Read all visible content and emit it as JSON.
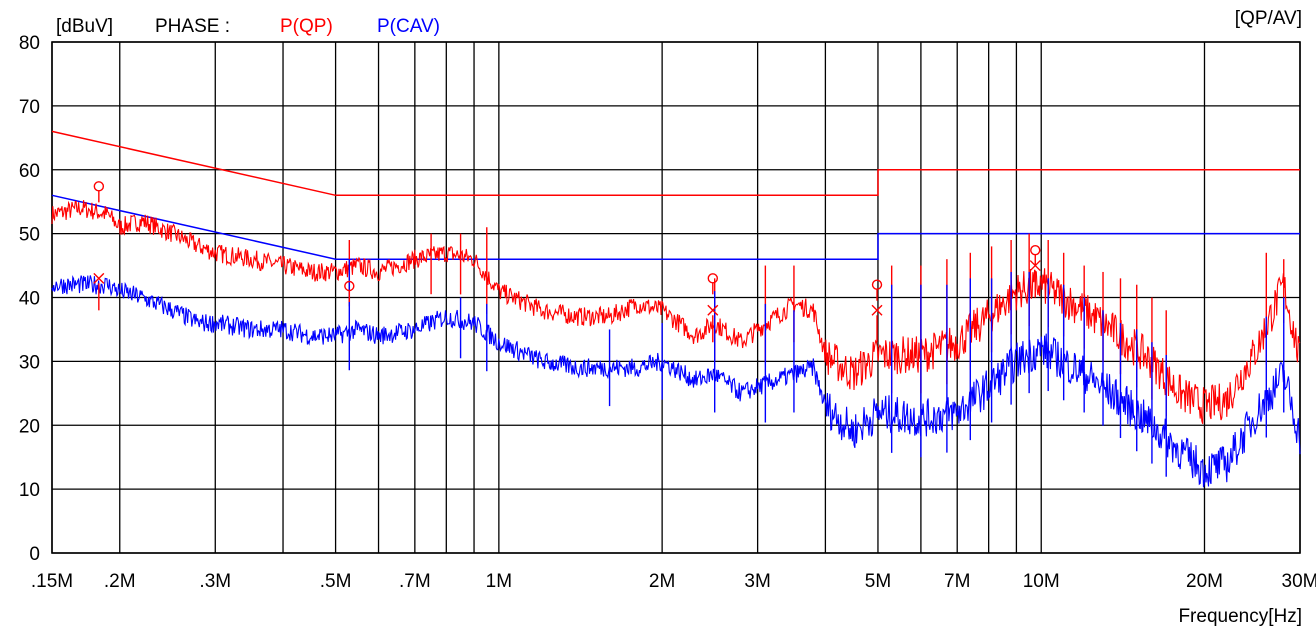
{
  "chart_data": {
    "type": "line",
    "header": {
      "unit": "[dBuV]",
      "phase_label": "PHASE :",
      "series_qp_label": "P(QP)",
      "series_cav_label": "P(CAV)",
      "mode": "[QP/AV]"
    },
    "xlabel": "Frequency[Hz]",
    "ylabel": "[dBuV]",
    "x_scale": "log",
    "xlim": [
      0.15,
      30
    ],
    "ylim": [
      0,
      80
    ],
    "yticks": [
      0,
      10,
      20,
      30,
      40,
      50,
      60,
      70,
      80
    ],
    "xticks": [
      {
        "value": 0.15,
        "label": ".15M"
      },
      {
        "value": 0.2,
        "label": ".2M"
      },
      {
        "value": 0.3,
        "label": ".3M"
      },
      {
        "value": 0.5,
        "label": ".5M"
      },
      {
        "value": 0.7,
        "label": ".7M"
      },
      {
        "value": 1,
        "label": "1M"
      },
      {
        "value": 2,
        "label": "2M"
      },
      {
        "value": 3,
        "label": "3M"
      },
      {
        "value": 5,
        "label": "5M"
      },
      {
        "value": 7,
        "label": "7M"
      },
      {
        "value": 10,
        "label": "10M"
      },
      {
        "value": 20,
        "label": "20M"
      },
      {
        "value": 30,
        "label": "30M"
      }
    ],
    "x_gridlines": [
      0.15,
      0.2,
      0.3,
      0.4,
      0.5,
      0.6,
      0.7,
      0.8,
      0.9,
      1,
      2,
      3,
      4,
      5,
      6,
      7,
      8,
      9,
      10,
      20,
      30
    ],
    "grid": true,
    "colors": {
      "qp": "#ff0000",
      "cav": "#0000ff",
      "grid": "#000000"
    },
    "limits": [
      {
        "name": "QP limit",
        "color": "#ff0000",
        "points": [
          [
            0.15,
            66
          ],
          [
            0.5,
            56
          ],
          [
            5,
            56
          ],
          [
            5,
            60
          ],
          [
            30,
            60
          ]
        ]
      },
      {
        "name": "AV limit",
        "color": "#0000ff",
        "points": [
          [
            0.15,
            56
          ],
          [
            0.5,
            46
          ],
          [
            5,
            46
          ],
          [
            5,
            50
          ],
          [
            30,
            50
          ]
        ]
      }
    ],
    "series": [
      {
        "name": "P(QP)",
        "color": "#ff0000",
        "points": [
          [
            0.15,
            53
          ],
          [
            0.17,
            54
          ],
          [
            0.19,
            53
          ],
          [
            0.2,
            51
          ],
          [
            0.22,
            52
          ],
          [
            0.25,
            50
          ],
          [
            0.28,
            48
          ],
          [
            0.3,
            47
          ],
          [
            0.35,
            46
          ],
          [
            0.4,
            45
          ],
          [
            0.45,
            44
          ],
          [
            0.5,
            44
          ],
          [
            0.55,
            45
          ],
          [
            0.6,
            44
          ],
          [
            0.7,
            46
          ],
          [
            0.8,
            47
          ],
          [
            0.9,
            46
          ],
          [
            1,
            41
          ],
          [
            1.2,
            38
          ],
          [
            1.4,
            37
          ],
          [
            1.6,
            37
          ],
          [
            1.8,
            39
          ],
          [
            2,
            38
          ],
          [
            2.3,
            34
          ],
          [
            2.5,
            36
          ],
          [
            2.8,
            33
          ],
          [
            3,
            35
          ],
          [
            3.5,
            39
          ],
          [
            3.8,
            38
          ],
          [
            4,
            31
          ],
          [
            4.5,
            28
          ],
          [
            5,
            31
          ],
          [
            6,
            31
          ],
          [
            7,
            33
          ],
          [
            8,
            37
          ],
          [
            9,
            41
          ],
          [
            10,
            42
          ],
          [
            12,
            38
          ],
          [
            14,
            34
          ],
          [
            16,
            30
          ],
          [
            18,
            25
          ],
          [
            20,
            23
          ],
          [
            22,
            24
          ],
          [
            25,
            32
          ],
          [
            28,
            42
          ],
          [
            30,
            30
          ]
        ]
      },
      {
        "name": "P(CAV)",
        "color": "#0000ff",
        "points": [
          [
            0.15,
            42
          ],
          [
            0.17,
            42
          ],
          [
            0.19,
            42
          ],
          [
            0.2,
            41
          ],
          [
            0.22,
            40
          ],
          [
            0.25,
            38
          ],
          [
            0.28,
            36
          ],
          [
            0.3,
            36
          ],
          [
            0.35,
            35
          ],
          [
            0.4,
            35
          ],
          [
            0.45,
            34
          ],
          [
            0.5,
            34
          ],
          [
            0.55,
            35
          ],
          [
            0.6,
            34
          ],
          [
            0.7,
            35
          ],
          [
            0.8,
            37
          ],
          [
            0.9,
            36
          ],
          [
            1,
            33
          ],
          [
            1.2,
            30
          ],
          [
            1.4,
            29
          ],
          [
            1.6,
            29
          ],
          [
            1.8,
            29
          ],
          [
            2,
            30
          ],
          [
            2.3,
            27
          ],
          [
            2.5,
            28
          ],
          [
            2.8,
            25
          ],
          [
            3,
            26
          ],
          [
            3.5,
            28
          ],
          [
            3.8,
            29
          ],
          [
            4,
            23
          ],
          [
            4.5,
            19
          ],
          [
            5,
            22
          ],
          [
            6,
            21
          ],
          [
            7,
            22
          ],
          [
            8,
            26
          ],
          [
            9,
            30
          ],
          [
            10,
            32
          ],
          [
            12,
            28
          ],
          [
            14,
            24
          ],
          [
            16,
            20
          ],
          [
            18,
            16
          ],
          [
            20,
            13
          ],
          [
            22,
            14
          ],
          [
            25,
            22
          ],
          [
            28,
            28
          ],
          [
            30,
            18
          ]
        ]
      }
    ],
    "spikes": {
      "qp": [
        [
          0.53,
          49
        ],
        [
          0.75,
          50
        ],
        [
          0.85,
          50
        ],
        [
          0.95,
          51
        ],
        [
          2.5,
          43
        ],
        [
          3.1,
          45
        ],
        [
          3.5,
          45
        ],
        [
          5.3,
          45
        ],
        [
          6,
          45
        ],
        [
          6.7,
          46
        ],
        [
          7.4,
          47
        ],
        [
          8.1,
          48
        ],
        [
          8.8,
          49
        ],
        [
          9.5,
          50
        ],
        [
          10.3,
          49
        ],
        [
          11,
          47
        ],
        [
          12,
          45
        ],
        [
          13,
          44
        ],
        [
          14,
          43
        ],
        [
          15,
          42
        ],
        [
          16,
          40
        ],
        [
          17,
          38
        ],
        [
          26,
          47
        ],
        [
          28,
          46
        ]
      ],
      "cav": [
        [
          0.53,
          46
        ],
        [
          0.85,
          40
        ],
        [
          0.95,
          39
        ],
        [
          1.6,
          35
        ],
        [
          2,
          36
        ],
        [
          2.5,
          41
        ],
        [
          3.1,
          39
        ],
        [
          3.5,
          38
        ],
        [
          5.3,
          42
        ],
        [
          6,
          42
        ],
        [
          6.7,
          42
        ],
        [
          7.4,
          43
        ],
        [
          8.1,
          43
        ],
        [
          8.8,
          44
        ],
        [
          9.5,
          44
        ],
        [
          10.3,
          43
        ],
        [
          11,
          42
        ],
        [
          12,
          40
        ],
        [
          13,
          38
        ],
        [
          14,
          36
        ],
        [
          15,
          35
        ],
        [
          16,
          33
        ],
        [
          17,
          31
        ],
        [
          26,
          37
        ],
        [
          28,
          40
        ]
      ]
    },
    "markers": [
      {
        "series": "P(QP)",
        "shape": "circle",
        "x": 0.183,
        "y": 57.4
      },
      {
        "series": "P(QP)",
        "shape": "circle",
        "x": 0.53,
        "y": 41.8
      },
      {
        "series": "P(QP)",
        "shape": "circle",
        "x": 2.48,
        "y": 43
      },
      {
        "series": "P(QP)",
        "shape": "circle",
        "x": 4.98,
        "y": 42
      },
      {
        "series": "P(QP)",
        "shape": "circle",
        "x": 9.75,
        "y": 47.4
      },
      {
        "series": "P(QP)",
        "shape": "cross",
        "x": 0.183,
        "y": 43
      },
      {
        "series": "P(QP)",
        "shape": "cross",
        "x": 2.48,
        "y": 38
      },
      {
        "series": "P(QP)",
        "shape": "cross",
        "x": 4.98,
        "y": 38
      },
      {
        "series": "P(QP)",
        "shape": "cross",
        "x": 9.75,
        "y": 45
      }
    ]
  }
}
